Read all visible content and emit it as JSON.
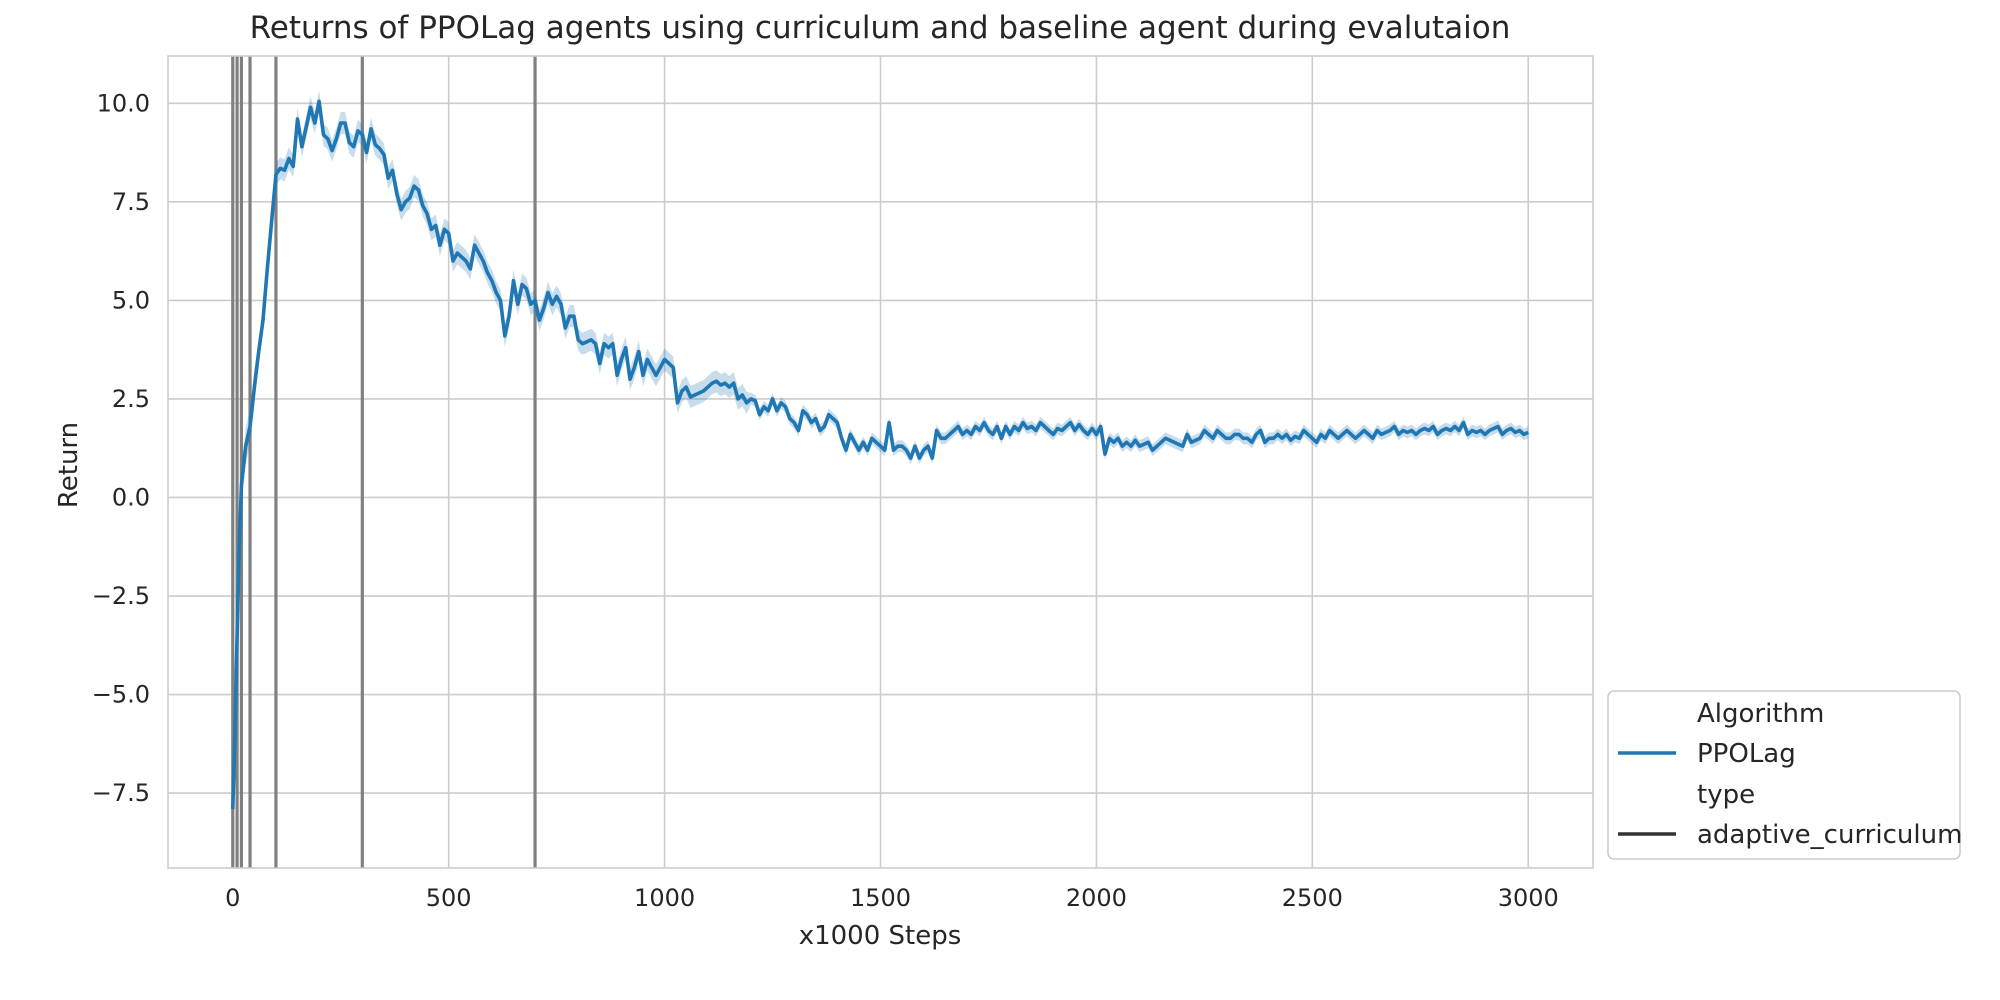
{
  "chart_data": {
    "type": "line",
    "title": "Returns of PPOLag agents using curriculum and baseline agent during evalutaion",
    "xlabel": "x1000 Steps",
    "ylabel": "Return",
    "xlim": [
      -150,
      3150
    ],
    "ylim": [
      -9.4,
      11.2
    ],
    "xticks": [
      0,
      500,
      1000,
      1500,
      2000,
      2500,
      3000
    ],
    "yticks": [
      -7.5,
      -5.0,
      -2.5,
      0.0,
      2.5,
      5.0,
      7.5,
      10.0
    ],
    "ytick_labels": [
      "−7.5",
      "−5.0",
      "−2.5",
      "0.0",
      "2.5",
      "5.0",
      "7.5",
      "10.0"
    ],
    "grid": true,
    "legend_position": "outside-bottom-right",
    "legend": {
      "title_algorithm": "Algorithm",
      "series_label": "PPOLag",
      "title_type": "type",
      "type_label": "adaptive_curriculum"
    },
    "vertical_lines_x": [
      0,
      10,
      20,
      40,
      100,
      300,
      700
    ],
    "series": [
      {
        "name": "PPOLag",
        "color": "#1f77b4",
        "band_color": "#1f77b4",
        "points": [
          [
            0,
            -7.9
          ],
          [
            5,
            -6.0
          ],
          [
            10,
            -3.5
          ],
          [
            15,
            -1.2
          ],
          [
            20,
            0.3
          ],
          [
            30,
            1.3
          ],
          [
            40,
            1.8
          ],
          [
            50,
            2.8
          ],
          [
            60,
            3.7
          ],
          [
            70,
            4.5
          ],
          [
            80,
            5.8
          ],
          [
            90,
            7.0
          ],
          [
            100,
            8.2
          ],
          [
            110,
            8.35
          ],
          [
            120,
            8.3
          ],
          [
            130,
            8.6
          ],
          [
            140,
            8.4
          ],
          [
            150,
            9.6
          ],
          [
            160,
            8.9
          ],
          [
            170,
            9.4
          ],
          [
            180,
            9.9
          ],
          [
            190,
            9.5
          ],
          [
            200,
            10.05
          ],
          [
            210,
            9.2
          ],
          [
            220,
            9.1
          ],
          [
            230,
            8.8
          ],
          [
            240,
            9.1
          ],
          [
            250,
            9.5
          ],
          [
            260,
            9.5
          ],
          [
            270,
            9.0
          ],
          [
            280,
            8.9
          ],
          [
            290,
            9.3
          ],
          [
            300,
            9.2
          ],
          [
            310,
            8.75
          ],
          [
            320,
            9.35
          ],
          [
            330,
            8.95
          ],
          [
            340,
            8.85
          ],
          [
            350,
            8.7
          ],
          [
            360,
            8.1
          ],
          [
            370,
            8.3
          ],
          [
            380,
            7.7
          ],
          [
            390,
            7.3
          ],
          [
            400,
            7.5
          ],
          [
            410,
            7.6
          ],
          [
            420,
            7.9
          ],
          [
            430,
            7.8
          ],
          [
            440,
            7.4
          ],
          [
            450,
            7.2
          ],
          [
            460,
            6.8
          ],
          [
            470,
            6.9
          ],
          [
            480,
            6.4
          ],
          [
            490,
            6.8
          ],
          [
            500,
            6.7
          ],
          [
            510,
            6.0
          ],
          [
            520,
            6.2
          ],
          [
            530,
            6.1
          ],
          [
            540,
            6.0
          ],
          [
            550,
            5.8
          ],
          [
            560,
            6.4
          ],
          [
            570,
            6.2
          ],
          [
            580,
            6.0
          ],
          [
            590,
            5.7
          ],
          [
            600,
            5.5
          ],
          [
            610,
            5.2
          ],
          [
            620,
            5.0
          ],
          [
            630,
            4.1
          ],
          [
            640,
            4.6
          ],
          [
            650,
            5.5
          ],
          [
            660,
            4.9
          ],
          [
            670,
            5.4
          ],
          [
            680,
            5.3
          ],
          [
            690,
            4.9
          ],
          [
            700,
            5.0
          ],
          [
            710,
            4.5
          ],
          [
            720,
            4.8
          ],
          [
            730,
            5.2
          ],
          [
            740,
            4.9
          ],
          [
            750,
            5.1
          ],
          [
            760,
            4.9
          ],
          [
            770,
            4.3
          ],
          [
            780,
            4.6
          ],
          [
            790,
            4.6
          ],
          [
            800,
            4.0
          ],
          [
            810,
            3.9
          ],
          [
            820,
            3.95
          ],
          [
            830,
            4.0
          ],
          [
            840,
            3.9
          ],
          [
            850,
            3.4
          ],
          [
            860,
            3.9
          ],
          [
            870,
            3.8
          ],
          [
            880,
            3.9
          ],
          [
            890,
            3.1
          ],
          [
            900,
            3.5
          ],
          [
            910,
            3.8
          ],
          [
            920,
            3.0
          ],
          [
            930,
            3.3
          ],
          [
            940,
            3.7
          ],
          [
            950,
            3.1
          ],
          [
            960,
            3.5
          ],
          [
            970,
            3.3
          ],
          [
            980,
            3.1
          ],
          [
            990,
            3.3
          ],
          [
            1000,
            3.5
          ],
          [
            1010,
            3.4
          ],
          [
            1020,
            3.3
          ],
          [
            1030,
            2.4
          ],
          [
            1040,
            2.7
          ],
          [
            1050,
            2.8
          ],
          [
            1060,
            2.55
          ],
          [
            1070,
            2.6
          ],
          [
            1080,
            2.65
          ],
          [
            1090,
            2.7
          ],
          [
            1100,
            2.8
          ],
          [
            1110,
            2.9
          ],
          [
            1120,
            2.95
          ],
          [
            1130,
            2.85
          ],
          [
            1140,
            2.9
          ],
          [
            1150,
            2.8
          ],
          [
            1160,
            2.9
          ],
          [
            1170,
            2.5
          ],
          [
            1180,
            2.6
          ],
          [
            1190,
            2.4
          ],
          [
            1200,
            2.5
          ],
          [
            1210,
            2.45
          ],
          [
            1220,
            2.1
          ],
          [
            1230,
            2.3
          ],
          [
            1240,
            2.2
          ],
          [
            1250,
            2.5
          ],
          [
            1260,
            2.2
          ],
          [
            1270,
            2.4
          ],
          [
            1280,
            2.3
          ],
          [
            1290,
            2.0
          ],
          [
            1300,
            1.9
          ],
          [
            1310,
            1.7
          ],
          [
            1320,
            2.2
          ],
          [
            1330,
            2.1
          ],
          [
            1340,
            1.9
          ],
          [
            1350,
            2.0
          ],
          [
            1360,
            1.7
          ],
          [
            1370,
            1.8
          ],
          [
            1380,
            2.1
          ],
          [
            1390,
            2.0
          ],
          [
            1400,
            1.9
          ],
          [
            1410,
            1.5
          ],
          [
            1420,
            1.2
          ],
          [
            1430,
            1.6
          ],
          [
            1440,
            1.4
          ],
          [
            1450,
            1.2
          ],
          [
            1460,
            1.4
          ],
          [
            1470,
            1.2
          ],
          [
            1480,
            1.5
          ],
          [
            1490,
            1.4
          ],
          [
            1500,
            1.3
          ],
          [
            1510,
            1.2
          ],
          [
            1520,
            1.9
          ],
          [
            1530,
            1.2
          ],
          [
            1540,
            1.3
          ],
          [
            1550,
            1.3
          ],
          [
            1560,
            1.2
          ],
          [
            1570,
            1.0
          ],
          [
            1580,
            1.3
          ],
          [
            1590,
            1.0
          ],
          [
            1600,
            1.2
          ],
          [
            1610,
            1.3
          ],
          [
            1620,
            1.0
          ],
          [
            1630,
            1.7
          ],
          [
            1640,
            1.5
          ],
          [
            1650,
            1.5
          ],
          [
            1660,
            1.6
          ],
          [
            1670,
            1.7
          ],
          [
            1680,
            1.8
          ],
          [
            1690,
            1.6
          ],
          [
            1700,
            1.7
          ],
          [
            1710,
            1.6
          ],
          [
            1720,
            1.8
          ],
          [
            1730,
            1.7
          ],
          [
            1740,
            1.9
          ],
          [
            1750,
            1.7
          ],
          [
            1760,
            1.6
          ],
          [
            1770,
            1.8
          ],
          [
            1780,
            1.5
          ],
          [
            1790,
            1.8
          ],
          [
            1800,
            1.6
          ],
          [
            1810,
            1.8
          ],
          [
            1820,
            1.7
          ],
          [
            1830,
            1.9
          ],
          [
            1840,
            1.75
          ],
          [
            1850,
            1.8
          ],
          [
            1860,
            1.7
          ],
          [
            1870,
            1.9
          ],
          [
            1880,
            1.8
          ],
          [
            1890,
            1.7
          ],
          [
            1900,
            1.6
          ],
          [
            1910,
            1.75
          ],
          [
            1920,
            1.7
          ],
          [
            1930,
            1.8
          ],
          [
            1940,
            1.9
          ],
          [
            1950,
            1.7
          ],
          [
            1960,
            1.85
          ],
          [
            1970,
            1.7
          ],
          [
            1980,
            1.6
          ],
          [
            1990,
            1.75
          ],
          [
            2000,
            1.6
          ],
          [
            2010,
            1.8
          ],
          [
            2020,
            1.1
          ],
          [
            2030,
            1.5
          ],
          [
            2040,
            1.4
          ],
          [
            2050,
            1.5
          ],
          [
            2060,
            1.3
          ],
          [
            2070,
            1.4
          ],
          [
            2080,
            1.3
          ],
          [
            2090,
            1.45
          ],
          [
            2100,
            1.3
          ],
          [
            2110,
            1.35
          ],
          [
            2120,
            1.4
          ],
          [
            2130,
            1.2
          ],
          [
            2140,
            1.3
          ],
          [
            2150,
            1.4
          ],
          [
            2160,
            1.5
          ],
          [
            2170,
            1.45
          ],
          [
            2180,
            1.4
          ],
          [
            2190,
            1.35
          ],
          [
            2200,
            1.3
          ],
          [
            2210,
            1.6
          ],
          [
            2220,
            1.4
          ],
          [
            2230,
            1.45
          ],
          [
            2240,
            1.5
          ],
          [
            2250,
            1.7
          ],
          [
            2260,
            1.6
          ],
          [
            2270,
            1.5
          ],
          [
            2280,
            1.7
          ],
          [
            2290,
            1.6
          ],
          [
            2300,
            1.5
          ],
          [
            2310,
            1.5
          ],
          [
            2320,
            1.6
          ],
          [
            2330,
            1.6
          ],
          [
            2340,
            1.5
          ],
          [
            2350,
            1.5
          ],
          [
            2360,
            1.4
          ],
          [
            2370,
            1.6
          ],
          [
            2380,
            1.7
          ],
          [
            2390,
            1.4
          ],
          [
            2400,
            1.5
          ],
          [
            2410,
            1.5
          ],
          [
            2420,
            1.6
          ],
          [
            2430,
            1.5
          ],
          [
            2440,
            1.6
          ],
          [
            2450,
            1.45
          ],
          [
            2460,
            1.55
          ],
          [
            2470,
            1.5
          ],
          [
            2480,
            1.7
          ],
          [
            2490,
            1.6
          ],
          [
            2500,
            1.5
          ],
          [
            2510,
            1.4
          ],
          [
            2520,
            1.6
          ],
          [
            2530,
            1.5
          ],
          [
            2540,
            1.7
          ],
          [
            2550,
            1.6
          ],
          [
            2560,
            1.5
          ],
          [
            2570,
            1.6
          ],
          [
            2580,
            1.7
          ],
          [
            2590,
            1.6
          ],
          [
            2600,
            1.5
          ],
          [
            2610,
            1.6
          ],
          [
            2620,
            1.7
          ],
          [
            2630,
            1.6
          ],
          [
            2640,
            1.5
          ],
          [
            2650,
            1.7
          ],
          [
            2660,
            1.6
          ],
          [
            2670,
            1.65
          ],
          [
            2680,
            1.7
          ],
          [
            2690,
            1.8
          ],
          [
            2700,
            1.6
          ],
          [
            2710,
            1.7
          ],
          [
            2720,
            1.65
          ],
          [
            2730,
            1.7
          ],
          [
            2740,
            1.6
          ],
          [
            2750,
            1.7
          ],
          [
            2760,
            1.75
          ],
          [
            2770,
            1.7
          ],
          [
            2780,
            1.8
          ],
          [
            2790,
            1.6
          ],
          [
            2800,
            1.7
          ],
          [
            2810,
            1.75
          ],
          [
            2820,
            1.7
          ],
          [
            2830,
            1.8
          ],
          [
            2840,
            1.7
          ],
          [
            2850,
            1.9
          ],
          [
            2860,
            1.6
          ],
          [
            2870,
            1.7
          ],
          [
            2880,
            1.65
          ],
          [
            2890,
            1.7
          ],
          [
            2900,
            1.6
          ],
          [
            2910,
            1.7
          ],
          [
            2920,
            1.75
          ],
          [
            2930,
            1.8
          ],
          [
            2940,
            1.6
          ],
          [
            2950,
            1.7
          ],
          [
            2960,
            1.75
          ],
          [
            2970,
            1.65
          ],
          [
            2980,
            1.7
          ],
          [
            2990,
            1.6
          ],
          [
            3000,
            1.65
          ]
        ]
      }
    ]
  }
}
